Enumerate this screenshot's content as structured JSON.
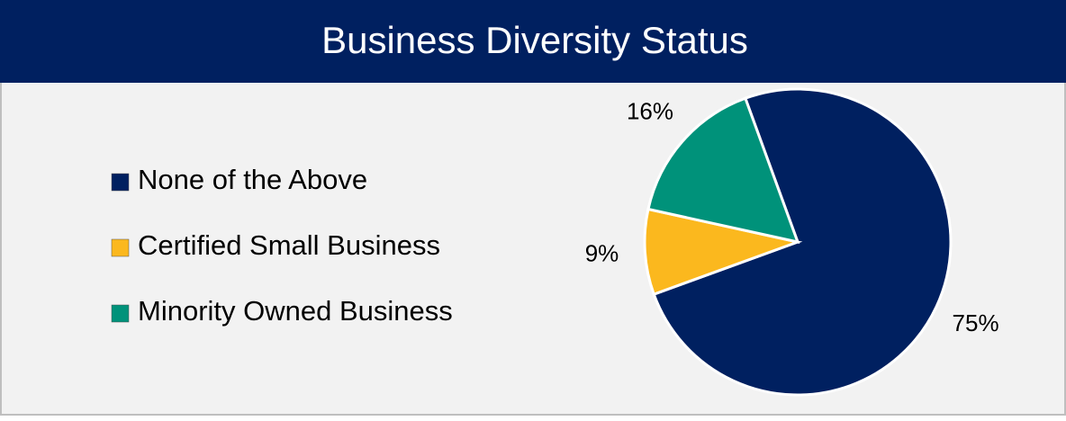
{
  "chart_data": {
    "type": "pie",
    "title": "Business Diversity Status",
    "categories": [
      "None of the Above",
      "Certified Small Business",
      "Minority Owned Business"
    ],
    "values": [
      75,
      9,
      16
    ],
    "value_labels": [
      "75%",
      "9%",
      "16%"
    ],
    "colors": [
      "#002060",
      "#fbb81e",
      "#00927a"
    ],
    "legend": "left"
  }
}
